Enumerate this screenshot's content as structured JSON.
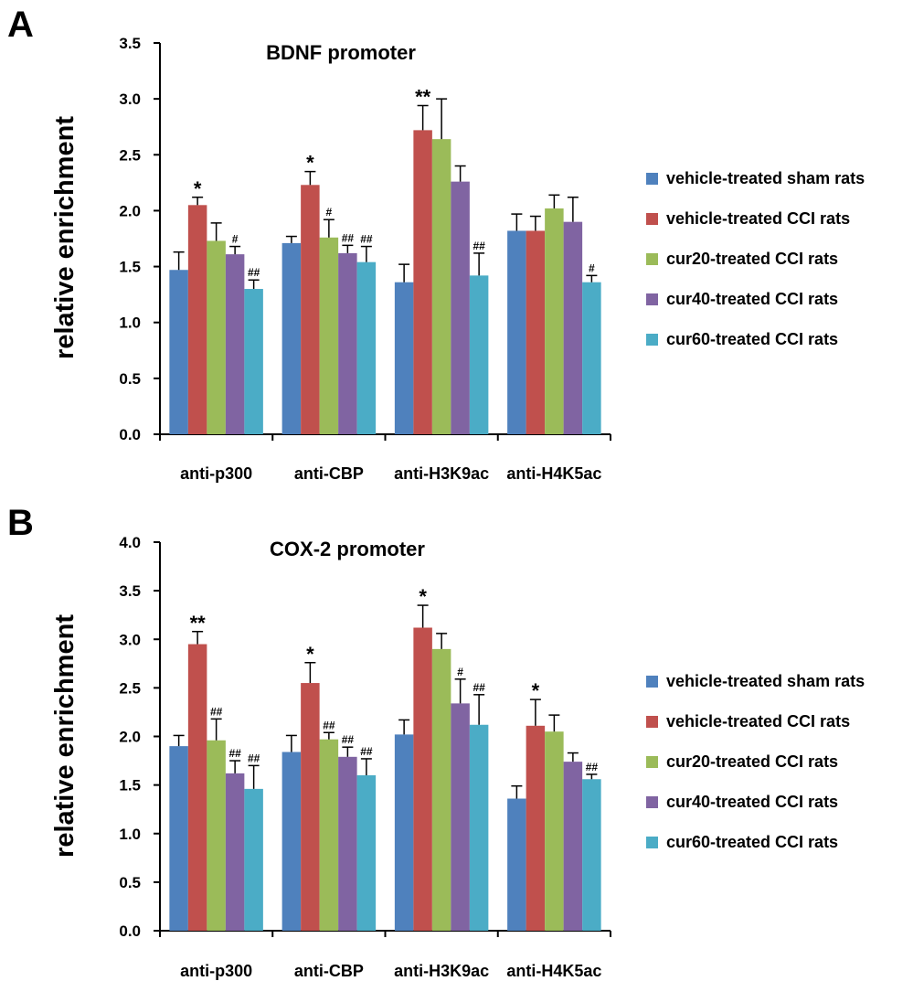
{
  "chart_data": [
    {
      "type": "bar",
      "panel": "A",
      "title": "BDNF promoter",
      "ylabel": "relative enrichment",
      "xlabel": "",
      "ylim": [
        0,
        3.5
      ],
      "yticks": [
        "0.0",
        "0.5",
        "1.0",
        "1.5",
        "2.0",
        "2.5",
        "3.0",
        "3.5"
      ],
      "categories": [
        "anti-p300",
        "anti-CBP",
        "anti-H3K9ac",
        "anti-H4K5ac"
      ],
      "legend_position": "right",
      "series": [
        {
          "name": "vehicle-treated sham rats",
          "color": "#4f81bd",
          "values": [
            1.47,
            1.71,
            1.36,
            1.82
          ],
          "errors": [
            0.16,
            0.06,
            0.16,
            0.15
          ],
          "annotations": [
            "",
            "",
            "",
            ""
          ]
        },
        {
          "name": "vehicle-treated CCI rats",
          "color": "#c0504d",
          "values": [
            2.05,
            2.23,
            2.72,
            1.82
          ],
          "errors": [
            0.07,
            0.12,
            0.22,
            0.13
          ],
          "annotations": [
            "*",
            "*",
            "**",
            ""
          ]
        },
        {
          "name": "cur20-treated CCI rats",
          "color": "#9bbb59",
          "values": [
            1.73,
            1.76,
            2.64,
            2.02
          ],
          "errors": [
            0.16,
            0.16,
            0.36,
            0.12
          ],
          "annotations": [
            "",
            "#",
            "",
            ""
          ]
        },
        {
          "name": "cur40-treated CCI rats",
          "color": "#8064a2",
          "values": [
            1.61,
            1.62,
            2.26,
            1.9
          ],
          "errors": [
            0.07,
            0.07,
            0.14,
            0.22
          ],
          "annotations": [
            "#",
            "##",
            "",
            ""
          ]
        },
        {
          "name": "cur60-treated CCI rats",
          "color": "#4bacc6",
          "values": [
            1.3,
            1.54,
            1.42,
            1.36
          ],
          "errors": [
            0.08,
            0.14,
            0.2,
            0.06
          ],
          "annotations": [
            "##",
            "##",
            "##",
            "#"
          ]
        }
      ]
    },
    {
      "type": "bar",
      "panel": "B",
      "title": "COX-2 promoter",
      "ylabel": "relative enrichment",
      "xlabel": "",
      "ylim": [
        0,
        4.0
      ],
      "yticks": [
        "0.0",
        "0.5",
        "1.0",
        "1.5",
        "2.0",
        "2.5",
        "3.0",
        "3.5",
        "4.0"
      ],
      "categories": [
        "anti-p300",
        "anti-CBP",
        "anti-H3K9ac",
        "anti-H4K5ac"
      ],
      "legend_position": "right",
      "series": [
        {
          "name": "vehicle-treated sham rats",
          "color": "#4f81bd",
          "values": [
            1.9,
            1.84,
            2.02,
            1.36
          ],
          "errors": [
            0.11,
            0.17,
            0.15,
            0.13
          ],
          "annotations": [
            "",
            "",
            "",
            ""
          ]
        },
        {
          "name": "vehicle-treated CCI rats",
          "color": "#c0504d",
          "values": [
            2.95,
            2.55,
            3.12,
            2.11
          ],
          "errors": [
            0.13,
            0.21,
            0.23,
            0.27
          ],
          "annotations": [
            "**",
            "*",
            "*",
            "*"
          ]
        },
        {
          "name": "cur20-treated CCI rats",
          "color": "#9bbb59",
          "values": [
            1.96,
            1.97,
            2.9,
            2.05
          ],
          "errors": [
            0.22,
            0.07,
            0.16,
            0.17
          ],
          "annotations": [
            "##",
            "##",
            "",
            ""
          ]
        },
        {
          "name": "cur40-treated CCI rats",
          "color": "#8064a2",
          "values": [
            1.62,
            1.79,
            2.34,
            1.74
          ],
          "errors": [
            0.13,
            0.1,
            0.25,
            0.09
          ],
          "annotations": [
            "##",
            "##",
            "#",
            ""
          ]
        },
        {
          "name": "cur60-treated CCI rats",
          "color": "#4bacc6",
          "values": [
            1.46,
            1.6,
            2.12,
            1.56
          ],
          "errors": [
            0.24,
            0.17,
            0.31,
            0.05
          ],
          "annotations": [
            "##",
            "##",
            "##",
            "##"
          ]
        }
      ]
    }
  ]
}
